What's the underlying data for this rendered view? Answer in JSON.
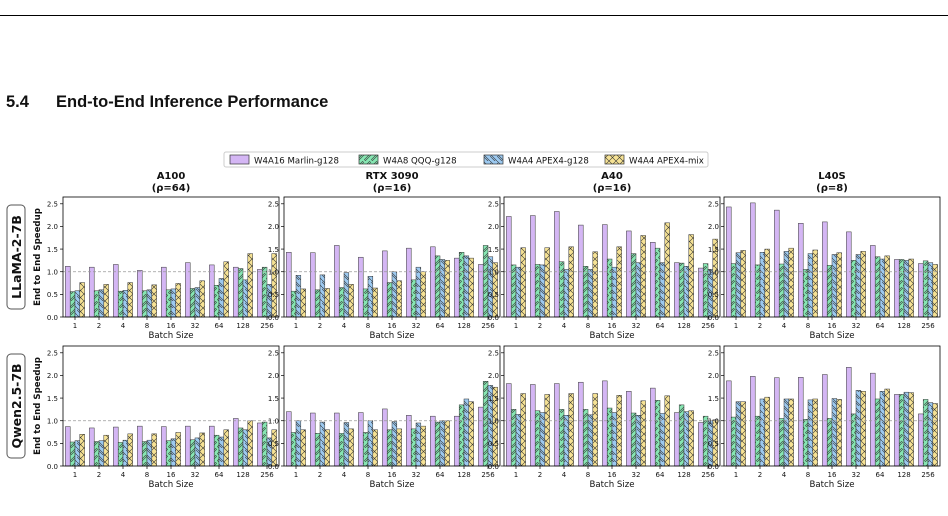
{
  "page": {
    "section_number": "5.4",
    "section_title": "End-to-End Inference Performance"
  },
  "colors": {
    "W4A16 Marlin-g128": "#d4b6f4",
    "W4A8 QQQ-g128": "#86e6b2",
    "W4A4 APEX4-g128": "#9cc9f0",
    "W4A4 APEX4-mix": "#f6e294",
    "edge": "#333333",
    "reference_line": "#999999"
  },
  "chart_data": {
    "type": "bar",
    "legend": [
      "W4A16 Marlin-g128",
      "W4A8 QQQ-g128",
      "W4A4 APEX4-g128",
      "W4A4 APEX4-mix"
    ],
    "legend_placement": "top-center",
    "hatches": [
      "none",
      "//",
      "\\\\",
      "xx"
    ],
    "xlabel": "Batch Size",
    "ylabel": "End to End Speedup",
    "categories": [
      "1",
      "2",
      "4",
      "8",
      "16",
      "32",
      "64",
      "128",
      "256"
    ],
    "ylim": [
      0,
      2.65
    ],
    "yticks": [
      "0.0",
      "0.5",
      "1.0",
      "1.5",
      "2.0",
      "2.5"
    ],
    "reference_line": 1.0,
    "grid": false,
    "rows": [
      "LLaMA-2-7B",
      "Qwen2.5-7B"
    ],
    "columns": [
      {
        "title": "A100",
        "subtitle": "(ρ=64)"
      },
      {
        "title": "RTX 3090",
        "subtitle": "(ρ=16)"
      },
      {
        "title": "A40",
        "subtitle": "(ρ=16)"
      },
      {
        "title": "L40S",
        "subtitle": "(ρ=8)"
      }
    ],
    "panels": [
      [
        {
          "series": [
            {
              "name": "W4A16 Marlin-g128",
              "values": [
                1.12,
                1.1,
                1.16,
                1.03,
                1.1,
                1.2,
                1.15,
                1.1,
                1.05
              ]
            },
            {
              "name": "W4A8 QQQ-g128",
              "values": [
                0.56,
                0.58,
                0.57,
                0.58,
                0.6,
                0.63,
                0.7,
                1.07,
                1.1
              ]
            },
            {
              "name": "W4A4 APEX4-g128",
              "values": [
                0.58,
                0.6,
                0.59,
                0.6,
                0.62,
                0.65,
                0.85,
                0.82,
                0.72
              ]
            },
            {
              "name": "W4A4 APEX4-mix",
              "values": [
                0.76,
                0.72,
                0.76,
                0.71,
                0.74,
                0.8,
                1.22,
                1.4,
                1.4
              ]
            }
          ]
        },
        {
          "series": [
            {
              "name": "W4A16 Marlin-g128",
              "values": [
                1.43,
                1.42,
                1.58,
                1.32,
                1.46,
                1.52,
                1.55,
                1.3,
                1.16
              ]
            },
            {
              "name": "W4A8 QQQ-g128",
              "values": [
                0.57,
                0.6,
                0.65,
                0.62,
                0.76,
                0.82,
                1.35,
                1.43,
                1.58
              ]
            },
            {
              "name": "W4A4 APEX4-g128",
              "values": [
                0.92,
                0.93,
                0.98,
                0.9,
                1.0,
                1.1,
                1.27,
                1.35,
                1.33
              ]
            },
            {
              "name": "W4A4 APEX4-mix",
              "values": [
                0.62,
                0.63,
                0.72,
                0.64,
                0.8,
                1.0,
                1.25,
                1.3,
                1.2
              ]
            }
          ]
        },
        {
          "series": [
            {
              "name": "W4A16 Marlin-g128",
              "values": [
                2.22,
                2.24,
                2.33,
                2.03,
                2.04,
                1.9,
                1.65,
                1.2,
                1.08
              ]
            },
            {
              "name": "W4A8 QQQ-g128",
              "values": [
                1.15,
                1.16,
                1.22,
                1.12,
                1.28,
                1.4,
                1.52,
                1.19,
                1.18
              ]
            },
            {
              "name": "W4A4 APEX4-g128",
              "values": [
                1.1,
                1.15,
                1.05,
                1.05,
                1.1,
                1.2,
                1.2,
                1.12,
                1.05
              ]
            },
            {
              "name": "W4A4 APEX4-mix",
              "values": [
                1.53,
                1.53,
                1.55,
                1.44,
                1.55,
                1.8,
                2.08,
                1.82,
                1.72
              ]
            }
          ]
        },
        {
          "series": [
            {
              "name": "W4A16 Marlin-g128",
              "values": [
                2.43,
                2.52,
                2.36,
                2.07,
                2.1,
                1.88,
                1.58,
                1.27,
                1.18
              ]
            },
            {
              "name": "W4A8 QQQ-g128",
              "values": [
                1.18,
                1.15,
                1.17,
                1.05,
                1.14,
                1.25,
                1.33,
                1.27,
                1.24
              ]
            },
            {
              "name": "W4A4 APEX4-g128",
              "values": [
                1.42,
                1.43,
                1.45,
                1.4,
                1.38,
                1.38,
                1.28,
                1.25,
                1.2
              ]
            },
            {
              "name": "W4A4 APEX4-mix",
              "values": [
                1.47,
                1.5,
                1.52,
                1.48,
                1.42,
                1.45,
                1.35,
                1.28,
                1.16
              ]
            }
          ]
        }
      ],
      [
        {
          "series": [
            {
              "name": "W4A16 Marlin-g128",
              "values": [
                0.87,
                0.84,
                0.86,
                0.88,
                0.87,
                0.88,
                0.88,
                1.05,
                0.95
              ]
            },
            {
              "name": "W4A8 QQQ-g128",
              "values": [
                0.53,
                0.54,
                0.52,
                0.54,
                0.56,
                0.58,
                0.68,
                0.84,
                0.97
              ]
            },
            {
              "name": "W4A4 APEX4-g128",
              "values": [
                0.56,
                0.56,
                0.57,
                0.57,
                0.6,
                0.62,
                0.64,
                0.8,
                0.62
              ]
            },
            {
              "name": "W4A4 APEX4-mix",
              "values": [
                0.7,
                0.68,
                0.71,
                0.71,
                0.74,
                0.73,
                0.8,
                1.0,
                0.8
              ]
            }
          ]
        },
        {
          "series": [
            {
              "name": "W4A16 Marlin-g128",
              "values": [
                1.2,
                1.17,
                1.17,
                1.18,
                1.26,
                1.12,
                1.1,
                1.1,
                1.3
              ]
            },
            {
              "name": "W4A8 QQQ-g128",
              "values": [
                0.74,
                0.72,
                0.72,
                0.74,
                0.8,
                0.82,
                0.97,
                1.35,
                1.87
              ]
            },
            {
              "name": "W4A4 APEX4-g128",
              "values": [
                1.0,
                0.97,
                0.96,
                1.0,
                0.98,
                0.95,
                1.0,
                1.48,
                1.78
              ]
            },
            {
              "name": "W4A4 APEX4-mix",
              "values": [
                0.8,
                0.8,
                0.82,
                0.8,
                0.82,
                0.88,
                1.0,
                1.42,
                1.74
              ]
            }
          ]
        },
        {
          "series": [
            {
              "name": "W4A16 Marlin-g128",
              "values": [
                1.82,
                1.8,
                1.82,
                1.85,
                1.88,
                1.65,
                1.72,
                1.18,
                0.96
              ]
            },
            {
              "name": "W4A8 QQQ-g128",
              "values": [
                1.25,
                1.22,
                1.25,
                1.25,
                1.28,
                1.17,
                1.45,
                1.35,
                1.1
              ]
            },
            {
              "name": "W4A4 APEX4-g128",
              "values": [
                1.14,
                1.18,
                1.12,
                1.13,
                1.18,
                1.12,
                1.16,
                1.2,
                1.0
              ]
            },
            {
              "name": "W4A4 APEX4-mix",
              "values": [
                1.6,
                1.58,
                1.6,
                1.6,
                1.56,
                1.44,
                1.55,
                1.22,
                1.02
              ]
            }
          ]
        },
        {
          "series": [
            {
              "name": "W4A16 Marlin-g128",
              "values": [
                1.88,
                1.98,
                1.95,
                1.96,
                2.02,
                2.18,
                2.05,
                1.58,
                1.15
              ]
            },
            {
              "name": "W4A8 QQQ-g128",
              "values": [
                1.08,
                1.1,
                1.05,
                1.03,
                1.05,
                1.15,
                1.48,
                1.58,
                1.47
              ]
            },
            {
              "name": "W4A4 APEX4-g128",
              "values": [
                1.42,
                1.48,
                1.48,
                1.46,
                1.49,
                1.67,
                1.65,
                1.63,
                1.4
              ]
            },
            {
              "name": "W4A4 APEX4-mix",
              "values": [
                1.42,
                1.52,
                1.48,
                1.48,
                1.47,
                1.65,
                1.7,
                1.62,
                1.38
              ]
            }
          ]
        }
      ]
    ]
  }
}
